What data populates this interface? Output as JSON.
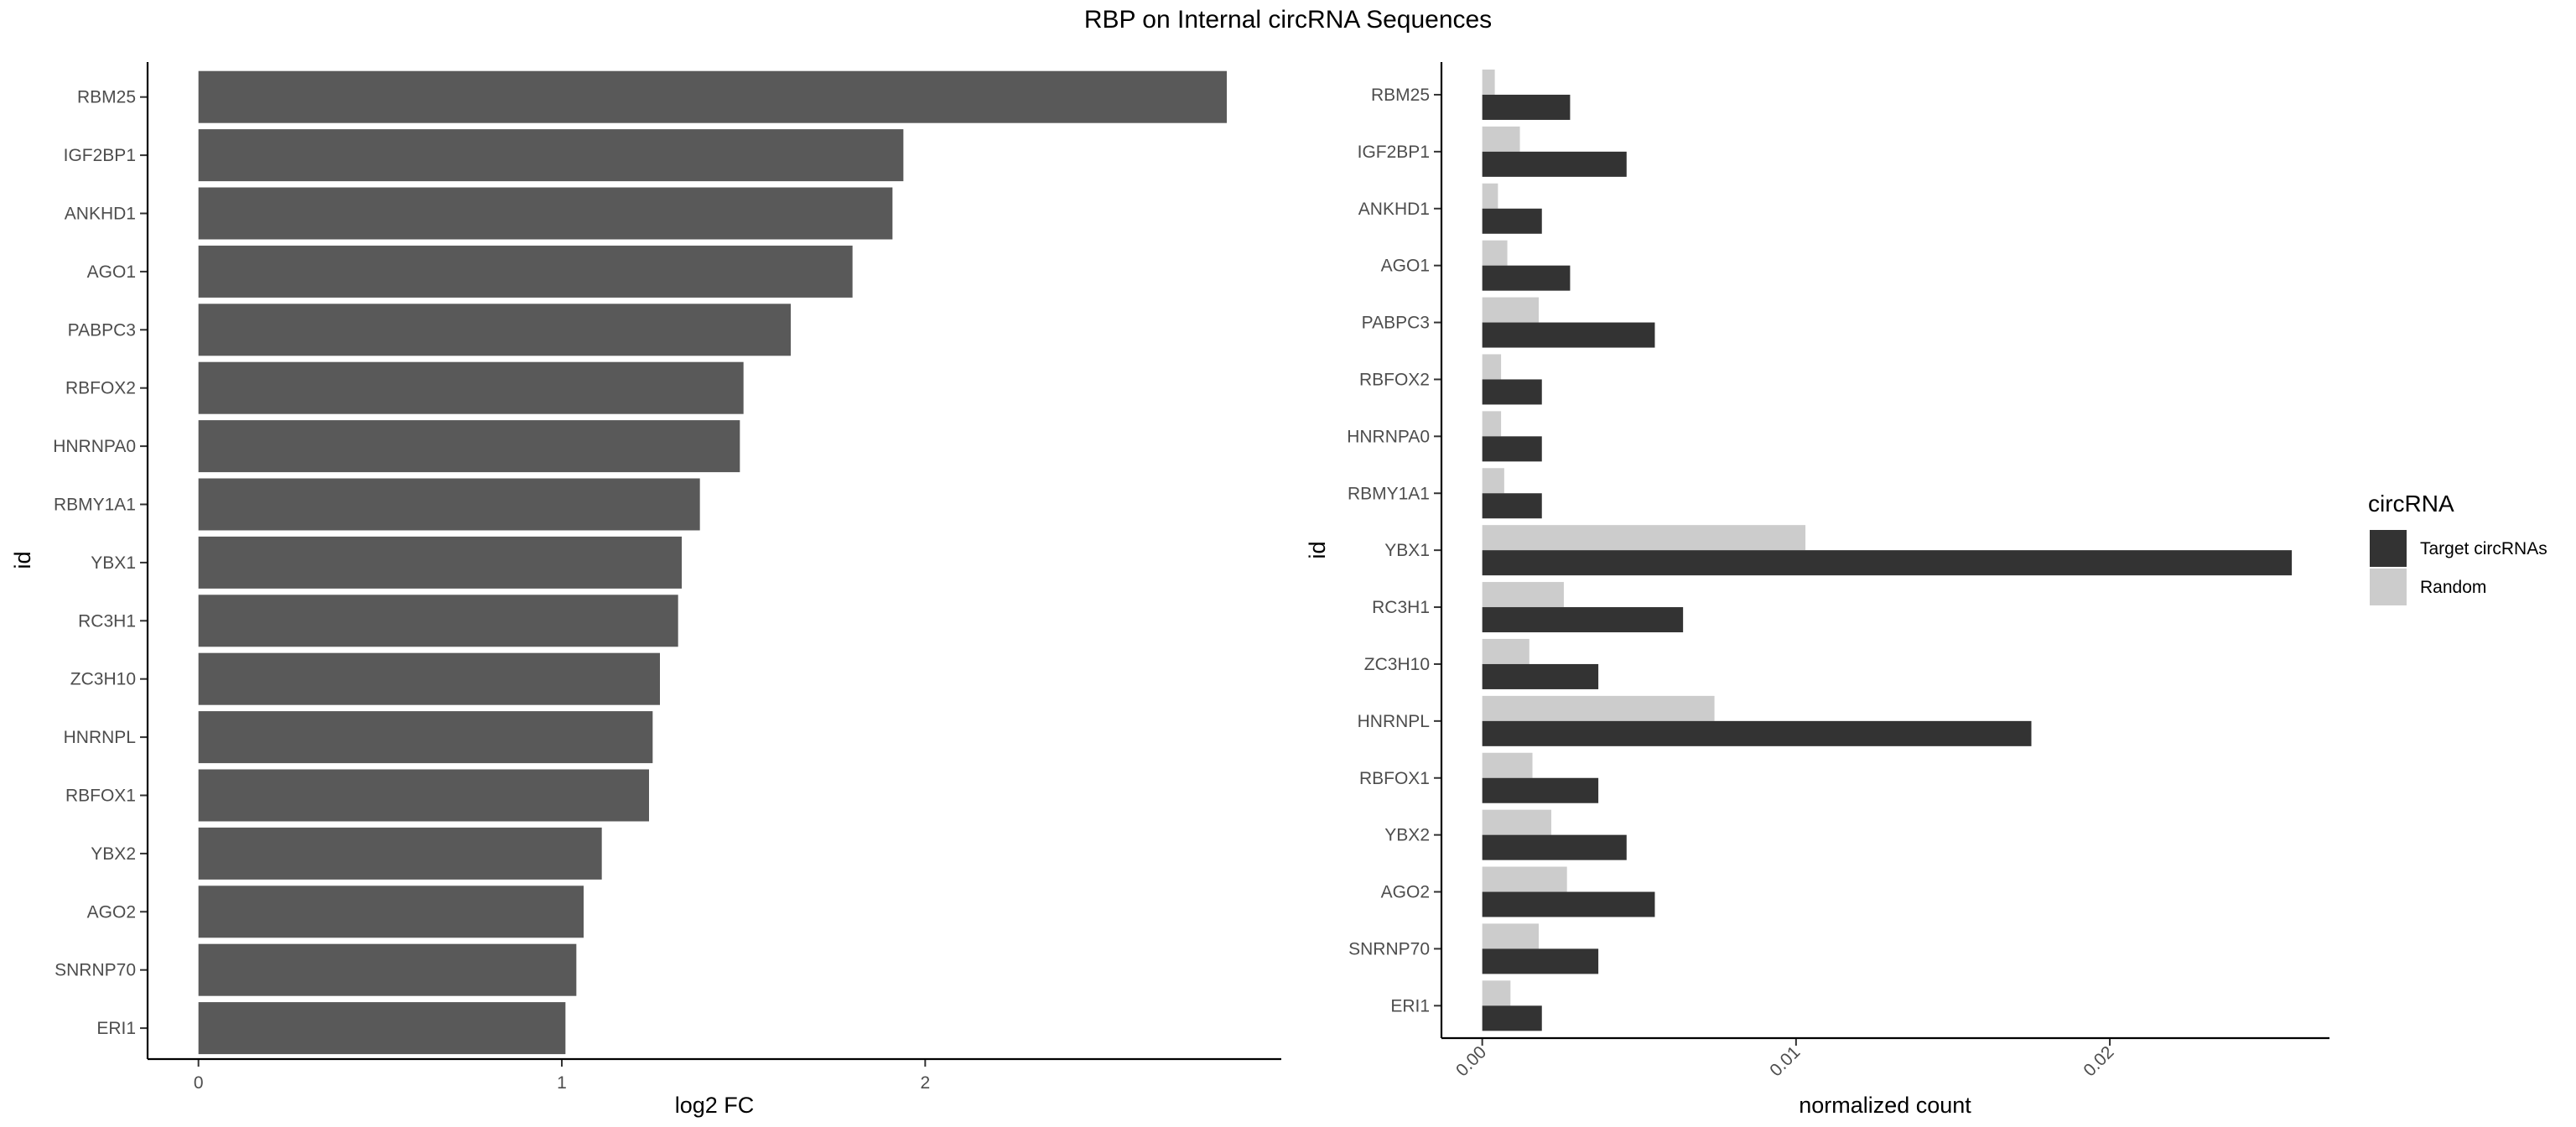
{
  "title": "RBP on Internal circRNA Sequences",
  "chart_data": [
    {
      "type": "bar",
      "orientation": "horizontal",
      "categories": [
        "RBM25",
        "IGF2BP1",
        "ANKHD1",
        "AGO1",
        "PABPC3",
        "RBFOX2",
        "HNRNPA0",
        "RBMY1A1",
        "YBX1",
        "RC3H1",
        "ZC3H10",
        "HNRNPL",
        "RBFOX1",
        "YBX2",
        "AGO2",
        "SNRNP70",
        "ERI1"
      ],
      "values": [
        2.83,
        1.94,
        1.91,
        1.8,
        1.63,
        1.5,
        1.49,
        1.38,
        1.33,
        1.32,
        1.27,
        1.25,
        1.24,
        1.11,
        1.06,
        1.04,
        1.01
      ],
      "xlabel": "log2 FC",
      "ylabel": "id",
      "xlim": [
        -0.14,
        2.98
      ],
      "xticks": [
        "0",
        "1",
        "2"
      ],
      "bar_color": "#595959",
      "grid": false
    },
    {
      "type": "bar",
      "orientation": "horizontal",
      "categories": [
        "RBM25",
        "IGF2BP1",
        "ANKHD1",
        "AGO1",
        "PABPC3",
        "RBFOX2",
        "HNRNPA0",
        "RBMY1A1",
        "YBX1",
        "RC3H1",
        "ZC3H10",
        "HNRNPL",
        "RBFOX1",
        "YBX2",
        "AGO2",
        "SNRNP70",
        "ERI1"
      ],
      "series": [
        {
          "name": "Target circRNAs",
          "color": "#333333",
          "values": [
            0.0028,
            0.0046,
            0.0019,
            0.0028,
            0.0055,
            0.0019,
            0.0019,
            0.0019,
            0.0258,
            0.0064,
            0.0037,
            0.0175,
            0.0037,
            0.0046,
            0.0055,
            0.0037,
            0.0019
          ]
        },
        {
          "name": "Random",
          "color": "#cccccc",
          "values": [
            0.0004,
            0.0012,
            0.0005,
            0.0008,
            0.0018,
            0.0006,
            0.0006,
            0.0007,
            0.0103,
            0.0026,
            0.0015,
            0.0074,
            0.0016,
            0.0022,
            0.0027,
            0.0018,
            0.0009
          ]
        }
      ],
      "xlabel": "normalized count",
      "ylabel": "id",
      "xlim": [
        -0.0013,
        0.027
      ],
      "xticks": [
        "0.00",
        "0.01",
        "0.02"
      ],
      "xtick_rotation": -45,
      "legend_title": "circRNA",
      "legend_position": "right",
      "grid": false
    }
  ]
}
